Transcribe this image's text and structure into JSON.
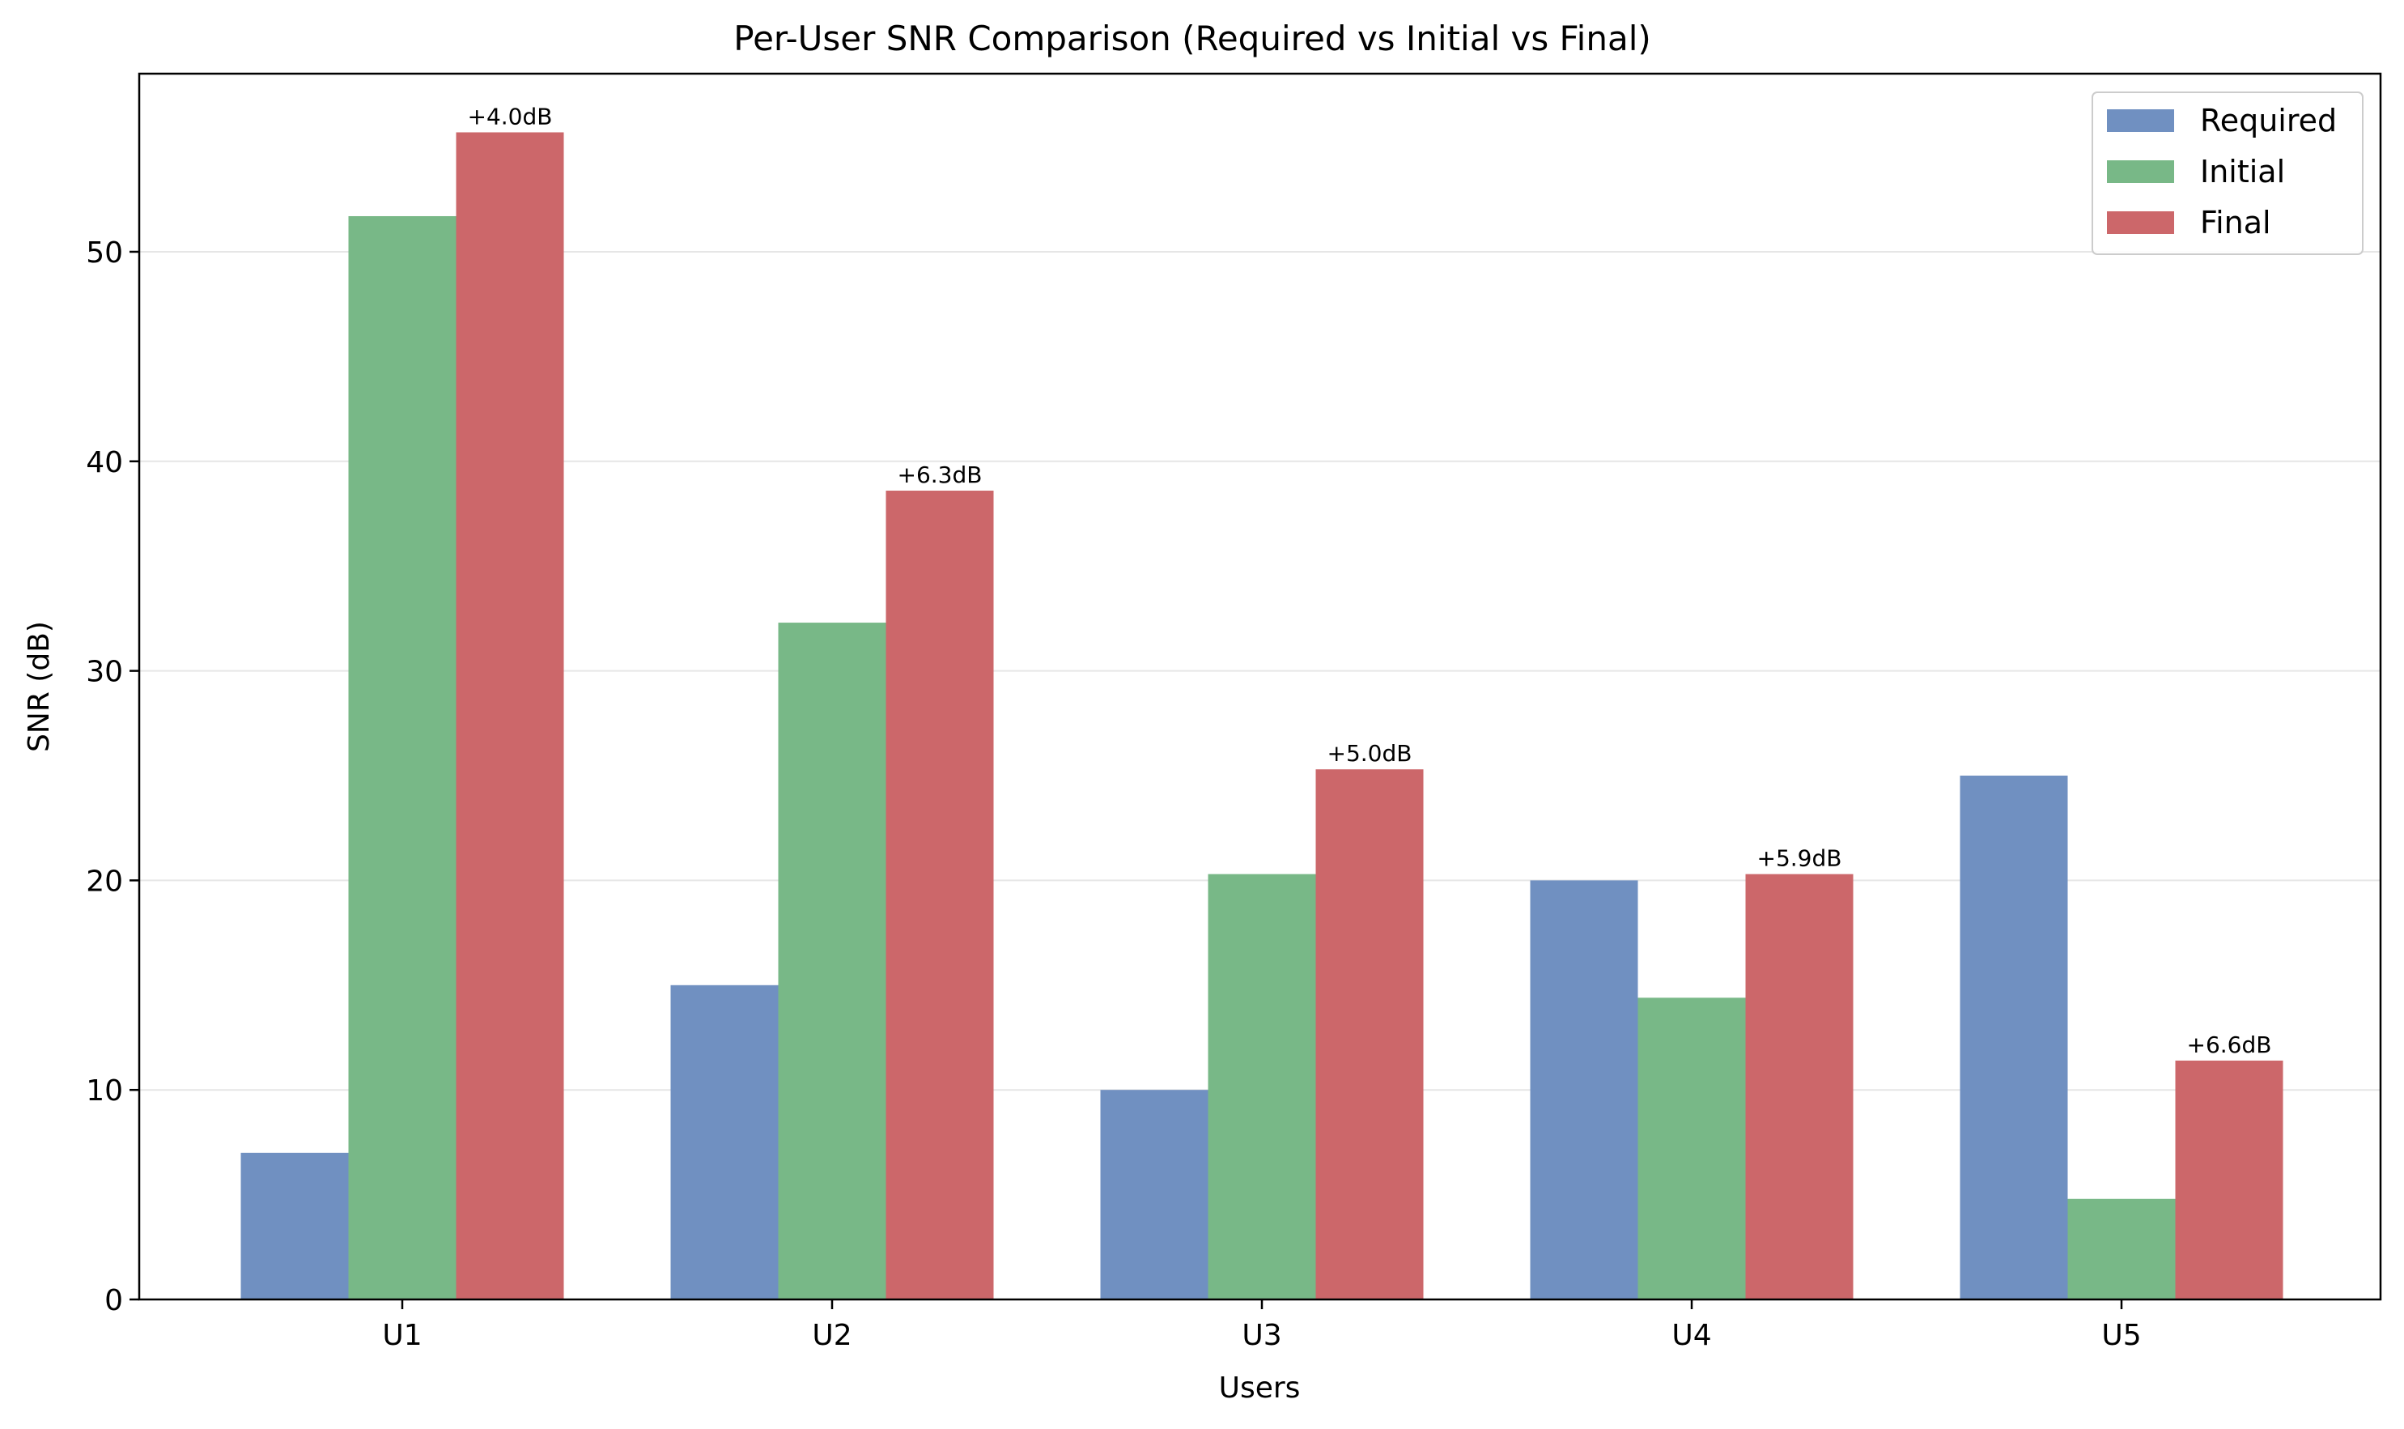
{
  "chart_data": {
    "type": "bar",
    "title": "Per-User SNR Comparison (Required vs Initial vs Final)",
    "xlabel": "Users",
    "ylabel": "SNR (dB)",
    "categories": [
      "U1",
      "U2",
      "U3",
      "U4",
      "U5"
    ],
    "series": [
      {
        "name": "Required",
        "color": "#7090c1",
        "values": [
          7.0,
          15.0,
          10.0,
          20.0,
          25.0
        ]
      },
      {
        "name": "Initial",
        "color": "#78b887",
        "values": [
          51.7,
          32.3,
          20.3,
          14.4,
          4.8
        ]
      },
      {
        "name": "Final",
        "color": "#cc676a",
        "values": [
          55.7,
          38.6,
          25.3,
          20.3,
          11.4
        ]
      }
    ],
    "annotations": [
      "+4.0dB",
      "+6.3dB",
      "+5.0dB",
      "+5.9dB",
      "+6.6dB"
    ],
    "ylim": [
      0,
      58.5
    ],
    "yticks": [
      "0",
      "10",
      "20",
      "30",
      "40",
      "50"
    ],
    "grid": "y",
    "legend_position": "top-right"
  }
}
